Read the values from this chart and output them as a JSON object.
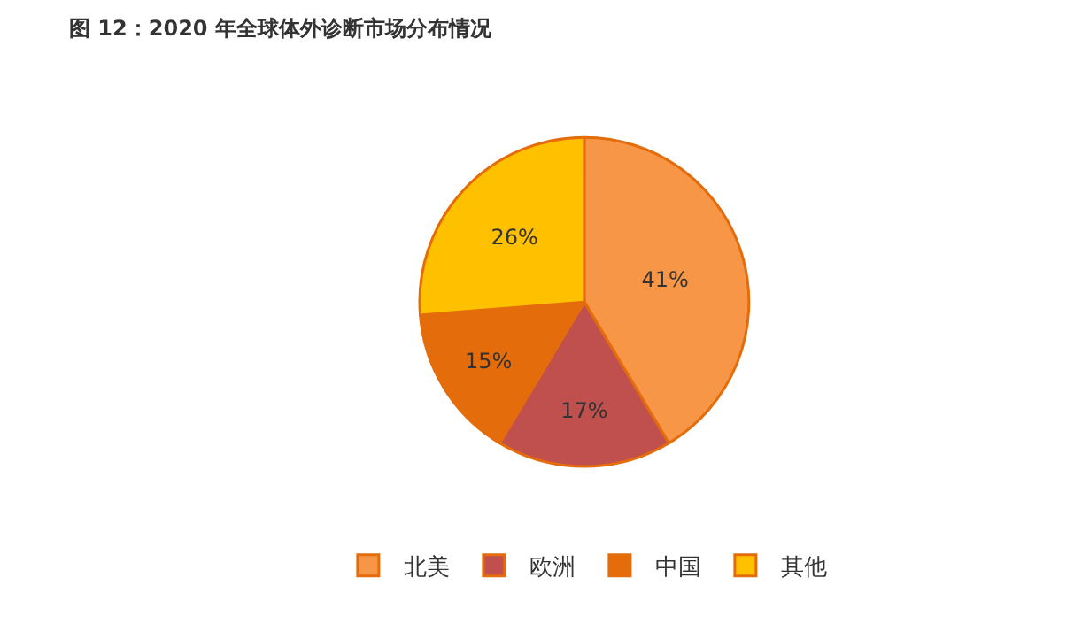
{
  "chart_data": {
    "type": "pie",
    "title": "图 12：2020 年全球体外诊断市场分布情况",
    "categories": [
      "北美",
      "欧洲",
      "中国",
      "其他"
    ],
    "values": [
      41,
      17,
      15,
      26
    ],
    "value_labels": [
      "41%",
      "17%",
      "15%",
      "26%"
    ],
    "colors": [
      "#f79646",
      "#c0504d",
      "#e46c0a",
      "#ffc000"
    ],
    "legend": "bottom"
  }
}
